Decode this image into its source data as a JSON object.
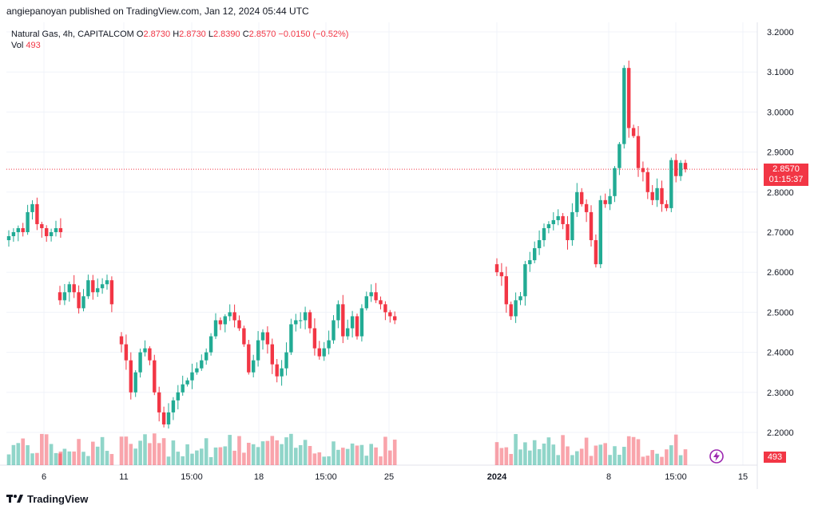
{
  "header": {
    "published_by": "angiepanoyan published on TradingView.com, Jan 12, 2024 05:44 UTC"
  },
  "legend": {
    "symbol": "Natural Gas, 4h, CAPITALCOM",
    "o_label": "O",
    "o_value": "2.8730",
    "h_label": "H",
    "h_value": "2.8730",
    "l_label": "L",
    "l_value": "2.8390",
    "c_label": "C",
    "c_value": "2.8570",
    "change": "−0.0150 (−0.52%)",
    "vol_label": "Vol",
    "vol_value": "493"
  },
  "price_tag": {
    "price": "2.8570",
    "countdown": "01:15:37"
  },
  "volume_tag": "493",
  "footer": {
    "brand": "TradingView"
  },
  "colors": {
    "up": "#22ab94",
    "down": "#f23645",
    "grid": "#f0f3fa",
    "text": "#131722"
  },
  "chart_data": {
    "type": "candlestick",
    "title": "Natural Gas, 4h, CAPITALCOM",
    "y_axis": {
      "min": 2.14,
      "max": 3.22,
      "ticks": [
        "3.2000",
        "3.1000",
        "3.0000",
        "2.9000",
        "2.8000",
        "2.7000",
        "2.6000",
        "2.5000",
        "2.4000",
        "2.3000",
        "2.2000"
      ]
    },
    "x_axis": {
      "labels": [
        "6",
        "11",
        "15:00",
        "18",
        "15:00",
        "25",
        "2024",
        "8",
        "15:00",
        "15"
      ]
    },
    "last_price": 2.857,
    "segments": [
      {
        "name": "s1",
        "close": [
          2.69,
          2.7,
          2.71,
          2.7,
          2.75,
          2.77,
          2.72,
          2.71,
          2.69,
          2.7,
          2.71,
          2.7
        ]
      },
      {
        "name": "s2",
        "close": [
          2.53,
          2.55,
          2.57,
          2.55,
          2.51,
          2.54,
          2.58,
          2.55,
          2.56,
          2.57,
          2.58,
          2.52
        ]
      },
      {
        "name": "s3",
        "close": [
          2.42,
          2.38,
          2.3,
          2.35,
          2.4,
          2.41,
          2.38,
          2.3,
          2.25,
          2.22,
          2.25,
          2.28,
          2.3,
          2.32,
          2.33,
          2.35,
          2.36,
          2.38,
          2.4,
          2.44,
          2.48,
          2.47,
          2.49,
          2.5,
          2.48,
          2.46,
          2.42,
          2.35,
          2.38,
          2.43,
          2.45,
          2.42,
          2.37,
          2.34,
          2.36,
          2.4,
          2.47,
          2.48,
          2.48,
          2.5,
          2.46,
          2.41,
          2.39,
          2.41,
          2.43,
          2.48,
          2.52,
          2.44,
          2.46,
          2.49,
          2.44,
          2.51,
          2.54,
          2.55,
          2.53,
          2.52,
          2.5,
          2.49,
          2.48
        ]
      },
      {
        "name": "s4",
        "close": [
          2.6,
          2.59,
          2.52,
          2.49,
          2.53,
          2.54,
          2.62,
          2.63,
          2.66,
          2.68,
          2.71,
          2.72,
          2.73,
          2.74,
          2.72,
          2.68,
          2.75,
          2.8,
          2.77,
          2.75,
          2.68,
          2.62,
          2.78,
          2.77,
          2.79,
          2.86,
          2.92,
          3.11,
          2.96,
          2.94,
          2.86,
          2.85,
          2.8,
          2.78,
          2.81,
          2.77,
          2.76,
          2.88,
          2.84,
          2.873,
          2.857
        ]
      }
    ],
    "volume": {
      "last": 493,
      "max_label_level": 2.4
    }
  }
}
